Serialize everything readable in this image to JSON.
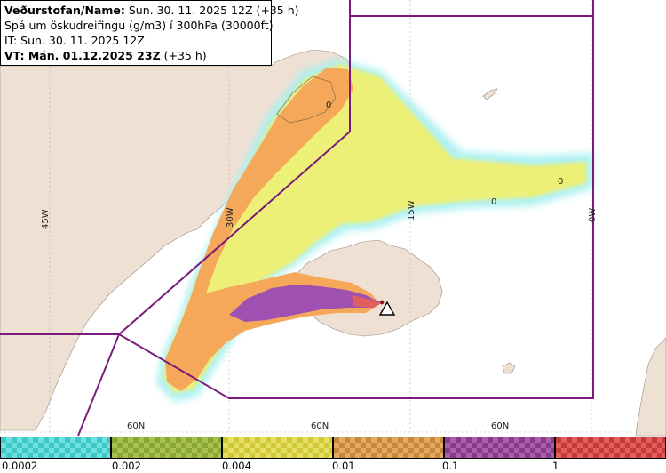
{
  "info": {
    "line1_label": "Veðurstofan/Name:",
    "line1_value": "Sun. 30. 11. 2025 12Z (+35 h)",
    "line2": "Spá um öskudreifingu (g/m3) í 300hPa (30000ft)",
    "line3": "IT: Sun. 30. 11. 2025 12Z",
    "line4_label": "VT: Mán. 01.12.2025 23Z",
    "line4_value": "(+35 h)"
  },
  "grid_labels": {
    "lon_45w": "45W",
    "lon_30w": "30W",
    "lon_15w": "15W",
    "lon_0w": "0W",
    "lat_a": "60N",
    "lat_b": "60N",
    "lat_c": "60N"
  },
  "contour_labels": [
    "0",
    "0",
    "0"
  ],
  "legend": {
    "ticks": [
      "0.0002",
      "0.002",
      "0.004",
      "0.01",
      "0.1",
      "1"
    ],
    "colors": [
      "#3cc8c8",
      "#8aa830",
      "#d0c838",
      "#c8883a",
      "#8a3a8a",
      "#c83a3a"
    ],
    "colors_light": [
      "#6ee0e0",
      "#a8c050",
      "#e6e060",
      "#e0a862",
      "#a860a8",
      "#e06060"
    ]
  },
  "map_colors": {
    "land": "#efe0d4",
    "sea": "#ffffff",
    "boundary": "#7a1a7a",
    "ash_orange": "#f5a85a",
    "ash_purple": "#a050b0",
    "ash_yellow": "#f0f070",
    "ash_cyan": "#a8f0f0"
  }
}
